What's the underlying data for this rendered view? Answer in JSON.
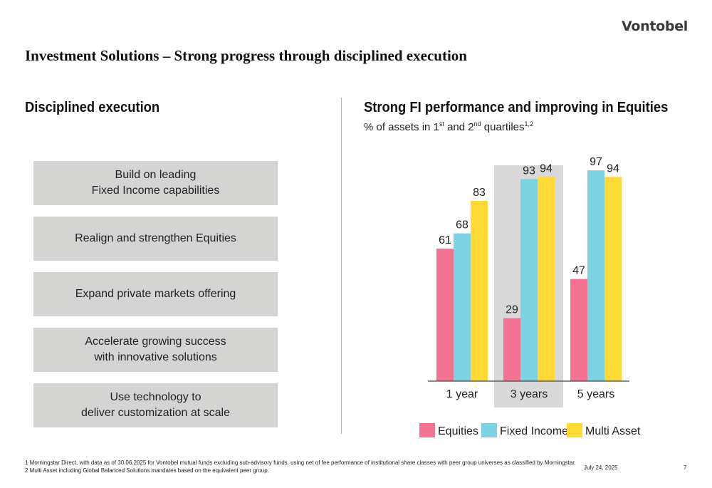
{
  "logo": "Vontobel",
  "page_title": "Investment Solutions – Strong progress through disciplined execution",
  "left": {
    "title": "Disciplined execution",
    "items": [
      "Build on leading\nFixed Income capabilities",
      "Realign and strengthen Equities",
      "Expand private markets offering",
      "Accelerate growing success\nwith innovative solutions",
      "Use technology to\ndeliver customization at scale"
    ]
  },
  "right": {
    "title": "Strong FI performance and improving in Equities",
    "subtitle_parts": {
      "a": "% of assets in 1",
      "sup1": "st",
      "b": " and 2",
      "sup2": "nd",
      "c": " quartiles",
      "sup3": "1,2"
    }
  },
  "chart_data": {
    "type": "bar",
    "categories": [
      "1 year",
      "3 years",
      "5 years"
    ],
    "series": [
      {
        "name": "Equities",
        "values": [
          61,
          29,
          47
        ],
        "color": "#f47393"
      },
      {
        "name": "Fixed Income",
        "values": [
          68,
          93,
          97
        ],
        "color": "#7ed3e3"
      },
      {
        "name": "Multi Asset",
        "values": [
          83,
          94,
          94
        ],
        "color": "#ffd935"
      }
    ],
    "highlight_category": "3 years",
    "highlight_color": "#d9d9d9",
    "ylim": [
      0,
      100
    ],
    "legend_position": "bottom"
  },
  "footnotes": [
    "1 Morningstar Direct, with data as of 30.06.2025 for Vontobel mutual funds excluding sub-advisory funds, using net of fee performance of institutional share classes with peer group universes as classified by Morningstar.",
    "2 Multi Asset including Global Balanced Solutions mandates based on the equivalent peer group."
  ],
  "date": "July 24, 2025",
  "page_number": "7"
}
